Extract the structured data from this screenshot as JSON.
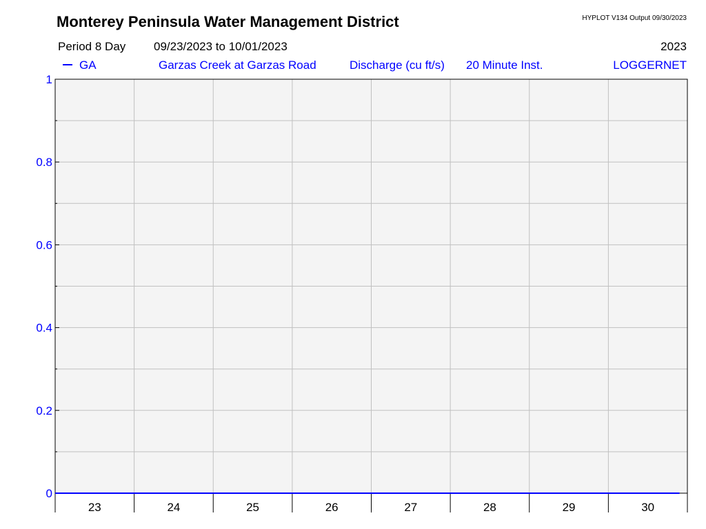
{
  "header": {
    "title": "Monterey Peninsula Water Management District",
    "program": "HYPLOT V134  Output 09/30/2023",
    "period": "Period 8 Day",
    "date_range": "09/23/2023  to  10/01/2023",
    "year": "2023",
    "site_code": "GA",
    "site_name": "Garzas Creek at Garzas Road",
    "variable": "Discharge (cu ft/s)",
    "interval": "20 Minute Inst.",
    "source": "LOGGERNET"
  },
  "colors": {
    "series": "#0000ff",
    "plot_background": "#f4f4f4",
    "grid": "#c0c0c0",
    "y_tick_labels": "#0000ff"
  },
  "chart_data": {
    "type": "line",
    "x_tick_labels": [
      "23",
      "24",
      "25",
      "26",
      "27",
      "28",
      "29",
      "30"
    ],
    "y_tick_labels": [
      "0",
      "0.2",
      "0.4",
      "0.6",
      "0.8",
      "1"
    ],
    "ylim": [
      0,
      1
    ],
    "x_range_days": [
      23,
      31
    ],
    "grid": true,
    "series": [
      {
        "name": "GA",
        "x": [
          23,
          30.9
        ],
        "y": [
          0,
          0
        ]
      }
    ]
  }
}
